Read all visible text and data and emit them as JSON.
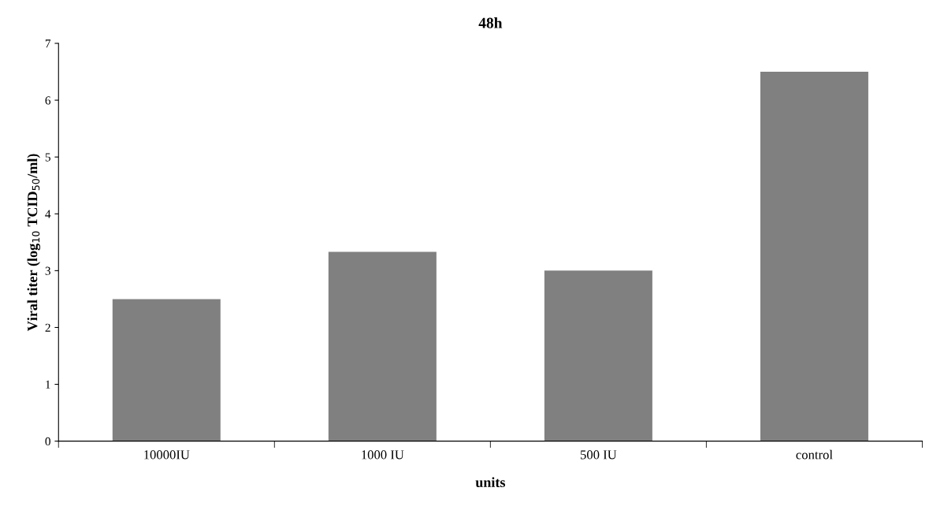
{
  "chart_data": {
    "type": "bar",
    "title": "48h",
    "xlabel": "units",
    "ylabel": "Viral titer (log$_{10}$ TCID$_{50}$/ml)",
    "categories": [
      "10000IU",
      "1000 IU",
      "500 IU",
      "control"
    ],
    "values": [
      2.5,
      3.33,
      3.0,
      6.5
    ],
    "color": "#808080",
    "ylim": [
      0,
      7
    ],
    "yticks": [
      0,
      1,
      2,
      3,
      4,
      5,
      6,
      7
    ],
    "grid": false,
    "legend": false
  }
}
